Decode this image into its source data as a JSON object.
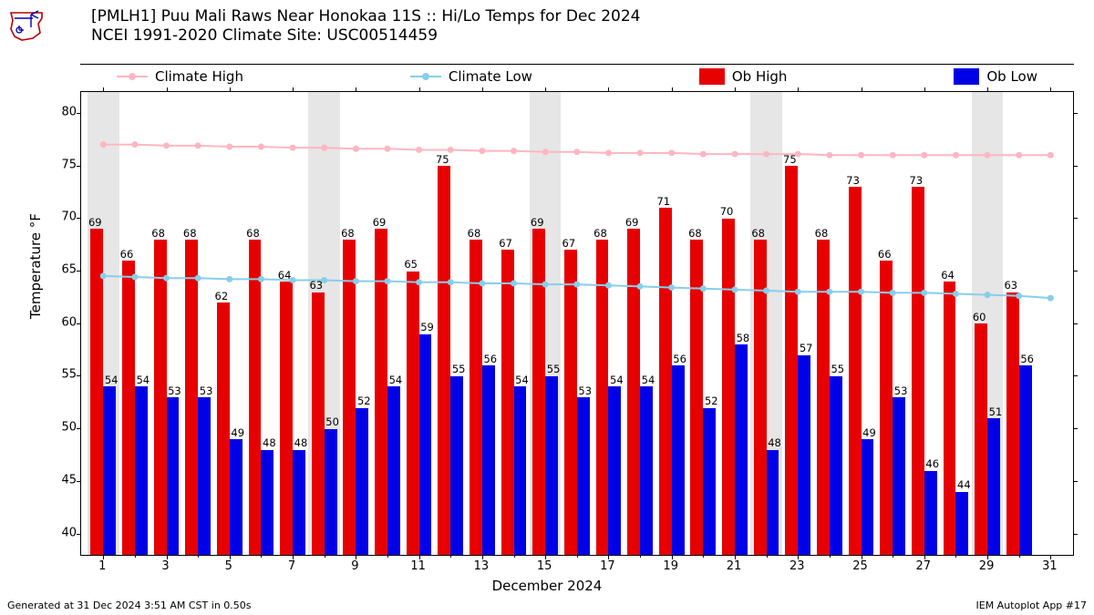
{
  "title_line1": "[PMLH1] Puu Mali Raws Near Honokaa 11S :: Hi/Lo Temps for Dec 2024",
  "title_line2": "NCEI 1991-2020 Climate Site: USC00514459",
  "ylabel": "Temperature °F",
  "xlabel": "December 2024",
  "footer_left": "Generated at 31 Dec 2024 3:51 AM CST in 0.50s",
  "footer_right": "IEM Autoplot App #17",
  "legend": {
    "climate_high": "Climate High",
    "climate_low": "Climate Low",
    "ob_high": "Ob High",
    "ob_low": "Ob Low"
  },
  "colors": {
    "climate_high": "#ffb6c1",
    "climate_low": "#87ceeb",
    "ob_high": "#e60000",
    "ob_low": "#0000e6",
    "weekend_band": "#e6e6e6",
    "background": "#ffffff",
    "axis": "#000000"
  },
  "yaxis": {
    "min": 38,
    "max": 82,
    "ticks": [
      40,
      45,
      50,
      55,
      60,
      65,
      70,
      75,
      80
    ]
  },
  "xaxis": {
    "days_min": 0.3,
    "days_max": 31.7,
    "ticks": [
      1,
      3,
      5,
      7,
      9,
      11,
      13,
      15,
      17,
      19,
      21,
      23,
      25,
      27,
      29,
      31
    ]
  },
  "weekends": [
    [
      0.5,
      1.5
    ],
    [
      7.5,
      8.5
    ],
    [
      14.5,
      15.5
    ],
    [
      21.5,
      22.5
    ],
    [
      28.5,
      29.5
    ]
  ],
  "days": [
    1,
    2,
    3,
    4,
    5,
    6,
    7,
    8,
    9,
    10,
    11,
    12,
    13,
    14,
    15,
    16,
    17,
    18,
    19,
    20,
    21,
    22,
    23,
    24,
    25,
    26,
    27,
    28,
    29,
    30
  ],
  "ob_high": [
    69,
    66,
    68,
    68,
    62,
    68,
    64,
    63,
    68,
    69,
    65,
    75,
    68,
    67,
    69,
    67,
    68,
    69,
    71,
    68,
    70,
    68,
    75,
    68,
    73,
    66,
    73,
    64,
    60,
    63
  ],
  "ob_low": [
    54,
    54,
    53,
    53,
    49,
    48,
    48,
    50,
    52,
    54,
    59,
    55,
    56,
    54,
    55,
    53,
    54,
    54,
    56,
    52,
    58,
    48,
    57,
    55,
    49,
    53,
    46,
    44,
    51,
    56
  ],
  "climate_high": [
    77.0,
    77.0,
    76.9,
    76.9,
    76.8,
    76.8,
    76.7,
    76.7,
    76.6,
    76.6,
    76.5,
    76.5,
    76.4,
    76.4,
    76.3,
    76.3,
    76.2,
    76.2,
    76.2,
    76.1,
    76.1,
    76.1,
    76.1,
    76.0,
    76.0,
    76.0,
    76.0,
    76.0,
    76.0,
    76.0,
    76.0
  ],
  "climate_low": [
    64.5,
    64.4,
    64.3,
    64.3,
    64.2,
    64.2,
    64.1,
    64.1,
    64.0,
    64.0,
    63.9,
    63.9,
    63.8,
    63.8,
    63.7,
    63.7,
    63.6,
    63.5,
    63.4,
    63.3,
    63.2,
    63.1,
    63.0,
    63.0,
    63.0,
    62.9,
    62.9,
    62.8,
    62.7,
    62.6,
    62.4
  ],
  "bar_width_days": 0.4,
  "logo_colors": {
    "border": "#b80000",
    "accent": "#0000b8"
  }
}
